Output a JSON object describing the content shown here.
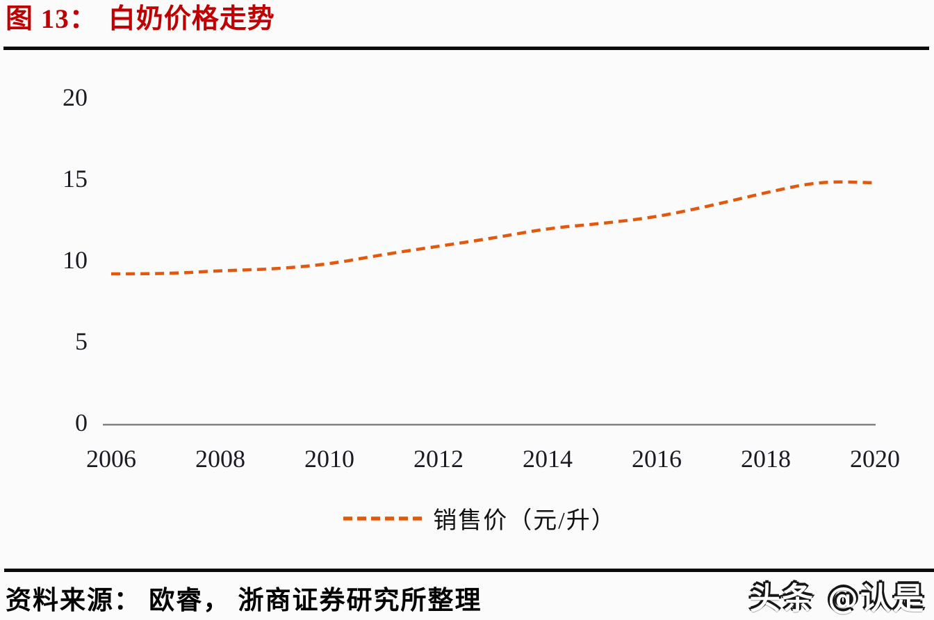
{
  "page": {
    "background_color": "#fcfbfc"
  },
  "header": {
    "figure_label": "图 13：",
    "figure_title": "白奶价格走势",
    "title_color": "#c00000"
  },
  "chart_data": {
    "type": "line",
    "title": "白奶价格走势",
    "x": [
      2006,
      2007,
      2008,
      2009,
      2010,
      2011,
      2012,
      2013,
      2014,
      2015,
      2016,
      2017,
      2018,
      2019,
      2020
    ],
    "series": [
      {
        "name": "销售价（元/升）",
        "values": [
          9.1,
          9.1,
          9.3,
          9.4,
          9.7,
          10.3,
          10.8,
          11.3,
          11.9,
          12.2,
          12.6,
          13.3,
          14.1,
          14.8,
          14.7
        ],
        "color": "#e2590e",
        "line_style": "dashed"
      }
    ],
    "xlabel": "",
    "ylabel": "",
    "ylim": [
      0,
      20
    ],
    "yticks": [
      0,
      5,
      10,
      15,
      20
    ],
    "xticks": [
      2006,
      2008,
      2010,
      2012,
      2014,
      2016,
      2018,
      2020
    ],
    "grid": false,
    "legend_position": "bottom",
    "axis_color": "#7f7f7f",
    "tick_label_color": "#1a1a22"
  },
  "footer": {
    "source_text": "资料来源： 欧睿， 浙商证券研究所整理"
  },
  "watermark": {
    "text": "头条 @认是"
  }
}
